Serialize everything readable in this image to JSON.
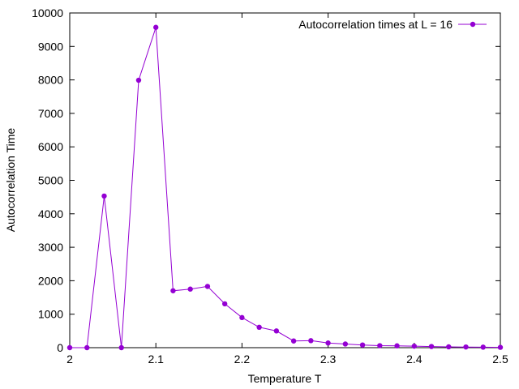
{
  "chart_data": {
    "type": "line",
    "title": "",
    "xlabel": "Temperature T",
    "ylabel": "Autocorrelation Time",
    "xlim": [
      2.0,
      2.5
    ],
    "ylim": [
      0,
      10000
    ],
    "x_ticks": [
      "2",
      "2.1",
      "2.2",
      "2.3",
      "2.4",
      "2.5"
    ],
    "y_ticks": [
      "0",
      "1000",
      "2000",
      "3000",
      "4000",
      "5000",
      "6000",
      "7000",
      "8000",
      "9000",
      "10000"
    ],
    "grid": false,
    "legend_position": "top-right",
    "series": [
      {
        "name": "Autocorrelation times at L = 16",
        "color": "#9400d3",
        "marker": "circle",
        "x": [
          2.0,
          2.02,
          2.04,
          2.06,
          2.08,
          2.1,
          2.12,
          2.14,
          2.16,
          2.18,
          2.2,
          2.22,
          2.24,
          2.26,
          2.28,
          2.3,
          2.32,
          2.34,
          2.36,
          2.38,
          2.4,
          2.42,
          2.44,
          2.46,
          2.48,
          2.5
        ],
        "y": [
          0,
          0,
          4530,
          0,
          7990,
          9570,
          1700,
          1750,
          1830,
          1310,
          900,
          610,
          500,
          200,
          210,
          140,
          110,
          80,
          60,
          55,
          45,
          35,
          25,
          20,
          15,
          10
        ]
      }
    ]
  }
}
